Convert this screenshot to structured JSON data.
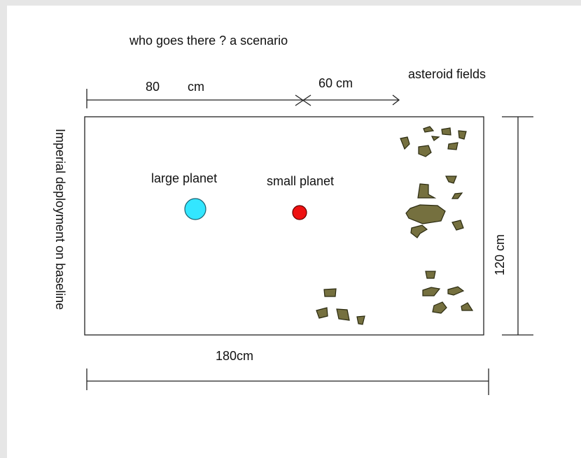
{
  "title": "who goes there ? a scenario",
  "dimensions": {
    "top_left_value": "80",
    "top_left_unit": "cm",
    "top_right": "60 cm",
    "width": "180cm",
    "height": "120 cm"
  },
  "labels": {
    "asteroids": "asteroid fields",
    "large_planet": "large planet",
    "small_planet": "small planet",
    "deployment": "Imperial deployment on baseline"
  }
}
